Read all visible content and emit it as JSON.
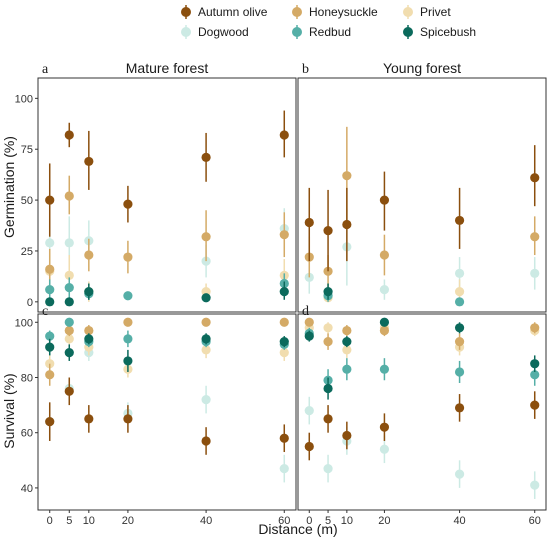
{
  "chart_data": {
    "type": "scatter",
    "legend": {
      "position": "top",
      "entries": [
        {
          "name": "Autumn olive",
          "color": "#8B4F0E"
        },
        {
          "name": "Honeysuckle",
          "color": "#D4AA66"
        },
        {
          "name": "Privet",
          "color": "#F1DDAF"
        },
        {
          "name": "Dogwood",
          "color": "#CCEAE4"
        },
        {
          "name": "Redbud",
          "color": "#55AFA7"
        },
        {
          "name": "Spicebush",
          "color": "#0B6A5C"
        }
      ]
    },
    "xlabel": "Distance (m)",
    "x_ticks": [
      0,
      5,
      10,
      20,
      40,
      60
    ],
    "xlim": [
      -3,
      63
    ],
    "grid": false,
    "rows": [
      {
        "ylabel": "Germination (%)",
        "ylim": [
          -5,
          110
        ],
        "y_ticks": [
          0,
          25,
          50,
          75,
          100
        ]
      },
      {
        "ylabel": "Survival (%)",
        "ylim": [
          32,
          103
        ],
        "y_ticks": [
          40,
          60,
          80,
          100
        ]
      }
    ],
    "columns": [
      {
        "title": "Mature forest"
      },
      {
        "title": "Young forest"
      }
    ],
    "panels": [
      {
        "letter": "a",
        "row": 0,
        "col": 0,
        "series": [
          {
            "name": "Dogwood",
            "points": [
              [
                0,
                29,
                17,
                41
              ],
              [
                5,
                29,
                17,
                42
              ],
              [
                10,
                30,
                20,
                40
              ],
              [
                40,
                20,
                12,
                28
              ],
              [
                60,
                36,
                26,
                46
              ]
            ]
          },
          {
            "name": "Privet",
            "points": [
              [
                0,
                15,
                6,
                24
              ],
              [
                5,
                13,
                3,
                23
              ],
              [
                10,
                5,
                0,
                10
              ],
              [
                40,
                5,
                1,
                9
              ],
              [
                60,
                13,
                5,
                21
              ]
            ]
          },
          {
            "name": "Honeysuckle",
            "points": [
              [
                0,
                16,
                6,
                26
              ],
              [
                5,
                52,
                43,
                62
              ],
              [
                10,
                23,
                15,
                31
              ],
              [
                20,
                22,
                14,
                30
              ],
              [
                40,
                32,
                20,
                45
              ],
              [
                60,
                33,
                22,
                44
              ]
            ]
          },
          {
            "name": "Redbud",
            "points": [
              [
                0,
                6,
                1,
                11
              ],
              [
                5,
                7,
                2,
                12
              ],
              [
                10,
                4,
                1,
                7
              ],
              [
                20,
                3,
                1,
                5
              ],
              [
                60,
                9,
                4,
                14
              ]
            ]
          },
          {
            "name": "Spicebush",
            "points": [
              [
                0,
                0,
                0,
                0
              ],
              [
                5,
                0,
                0,
                0
              ],
              [
                10,
                5,
                1,
                9
              ],
              [
                40,
                2,
                0,
                4
              ],
              [
                60,
                5,
                1,
                10
              ]
            ]
          },
          {
            "name": "Autumn olive",
            "points": [
              [
                0,
                50,
                32,
                68
              ],
              [
                5,
                82,
                76,
                88
              ],
              [
                10,
                69,
                55,
                84
              ],
              [
                20,
                48,
                39,
                57
              ],
              [
                40,
                71,
                59,
                83
              ],
              [
                60,
                82,
                71,
                94
              ]
            ]
          }
        ]
      },
      {
        "letter": "b",
        "row": 0,
        "col": 1,
        "series": [
          {
            "name": "Dogwood",
            "points": [
              [
                0,
                12,
                4,
                20
              ],
              [
                5,
                3,
                0,
                8
              ],
              [
                10,
                27,
                8,
                46
              ],
              [
                20,
                6,
                1,
                11
              ],
              [
                40,
                14,
                6,
                22
              ],
              [
                60,
                14,
                6,
                22
              ]
            ]
          },
          {
            "name": "Privet",
            "points": [
              [
                5,
                2,
                0,
                6
              ],
              [
                40,
                5,
                0,
                11
              ]
            ]
          },
          {
            "name": "Honeysuckle",
            "points": [
              [
                0,
                22,
                12,
                32
              ],
              [
                5,
                15,
                7,
                23
              ],
              [
                10,
                62,
                39,
                86
              ],
              [
                20,
                23,
                13,
                33
              ],
              [
                60,
                32,
                23,
                42
              ]
            ]
          },
          {
            "name": "Redbud",
            "points": [
              [
                5,
                3,
                0,
                7
              ],
              [
                40,
                0,
                0,
                0
              ]
            ]
          },
          {
            "name": "Spicebush",
            "points": [
              [
                5,
                5,
                1,
                9
              ]
            ]
          },
          {
            "name": "Autumn olive",
            "points": [
              [
                0,
                39,
                20,
                56
              ],
              [
                5,
                35,
                15,
                55
              ],
              [
                10,
                38,
                20,
                56
              ],
              [
                20,
                50,
                35,
                64
              ],
              [
                40,
                40,
                26,
                56
              ],
              [
                60,
                61,
                47,
                77
              ]
            ]
          }
        ]
      },
      {
        "letter": "c",
        "row": 1,
        "col": 0,
        "series": [
          {
            "name": "Dogwood",
            "points": [
              [
                0,
                64,
                58,
                70
              ],
              [
                5,
                76,
                72,
                80
              ],
              [
                10,
                89,
                86,
                92
              ],
              [
                20,
                67,
                63,
                71
              ],
              [
                40,
                72,
                67,
                77
              ],
              [
                60,
                47,
                42,
                52
              ]
            ]
          },
          {
            "name": "Privet",
            "points": [
              [
                0,
                85,
                82,
                88
              ],
              [
                5,
                94,
                92,
                96
              ],
              [
                10,
                91,
                88,
                94
              ],
              [
                20,
                83,
                80,
                86
              ],
              [
                40,
                90,
                87,
                93
              ],
              [
                60,
                89,
                86,
                92
              ]
            ]
          },
          {
            "name": "Honeysuckle",
            "points": [
              [
                0,
                81,
                77,
                85
              ],
              [
                5,
                97,
                95,
                99
              ],
              [
                10,
                97,
                95,
                99
              ],
              [
                20,
                100,
                100,
                100
              ],
              [
                40,
                100,
                100,
                100
              ],
              [
                60,
                100,
                100,
                100
              ]
            ]
          },
          {
            "name": "Redbud",
            "points": [
              [
                0,
                95,
                93,
                97
              ],
              [
                5,
                100,
                100,
                100
              ],
              [
                10,
                93,
                91,
                95
              ],
              [
                20,
                94,
                91,
                97
              ],
              [
                40,
                93,
                91,
                95
              ],
              [
                60,
                92,
                90,
                94
              ]
            ]
          },
          {
            "name": "Spicebush",
            "points": [
              [
                0,
                91,
                88,
                94
              ],
              [
                5,
                89,
                86,
                92
              ],
              [
                10,
                94,
                92,
                96
              ],
              [
                20,
                86,
                82,
                90
              ],
              [
                40,
                94,
                92,
                96
              ],
              [
                60,
                93,
                91,
                95
              ]
            ]
          },
          {
            "name": "Autumn olive",
            "points": [
              [
                0,
                64,
                57,
                71
              ],
              [
                5,
                75,
                70,
                80
              ],
              [
                10,
                65,
                60,
                70
              ],
              [
                20,
                65,
                60,
                70
              ],
              [
                40,
                57,
                52,
                62
              ],
              [
                60,
                58,
                53,
                63
              ]
            ]
          }
        ]
      },
      {
        "letter": "d",
        "row": 1,
        "col": 1,
        "series": [
          {
            "name": "Dogwood",
            "points": [
              [
                0,
                68,
                63,
                73
              ],
              [
                5,
                47,
                42,
                52
              ],
              [
                10,
                57,
                52,
                62
              ],
              [
                20,
                54,
                49,
                59
              ],
              [
                40,
                45,
                40,
                50
              ],
              [
                60,
                41,
                36,
                46
              ]
            ]
          },
          {
            "name": "Privet",
            "points": [
              [
                0,
                98,
                96,
                100
              ],
              [
                5,
                98,
                96,
                100
              ],
              [
                10,
                90,
                87,
                93
              ],
              [
                20,
                98,
                96,
                100
              ],
              [
                40,
                91,
                88,
                94
              ],
              [
                60,
                97,
                95,
                99
              ]
            ]
          },
          {
            "name": "Honeysuckle",
            "points": [
              [
                0,
                100,
                100,
                100
              ],
              [
                5,
                93,
                90,
                96
              ],
              [
                10,
                97,
                95,
                99
              ],
              [
                20,
                97,
                95,
                99
              ],
              [
                40,
                93,
                90,
                96
              ],
              [
                60,
                98,
                96,
                100
              ]
            ]
          },
          {
            "name": "Redbud",
            "points": [
              [
                0,
                96,
                94,
                98
              ],
              [
                5,
                79,
                75,
                83
              ],
              [
                10,
                83,
                79,
                87
              ],
              [
                20,
                83,
                79,
                87
              ],
              [
                40,
                82,
                78,
                86
              ],
              [
                60,
                81,
                77,
                85
              ]
            ]
          },
          {
            "name": "Spicebush",
            "points": [
              [
                0,
                95,
                93,
                97
              ],
              [
                5,
                76,
                72,
                80
              ],
              [
                10,
                93,
                91,
                95
              ],
              [
                20,
                100,
                100,
                100
              ],
              [
                40,
                98,
                96,
                100
              ],
              [
                60,
                85,
                82,
                88
              ]
            ]
          },
          {
            "name": "Autumn olive",
            "points": [
              [
                0,
                55,
                50,
                60
              ],
              [
                5,
                65,
                60,
                70
              ],
              [
                10,
                59,
                54,
                64
              ],
              [
                20,
                62,
                57,
                67
              ],
              [
                40,
                69,
                64,
                74
              ],
              [
                60,
                70,
                65,
                75
              ]
            ]
          }
        ]
      }
    ]
  }
}
